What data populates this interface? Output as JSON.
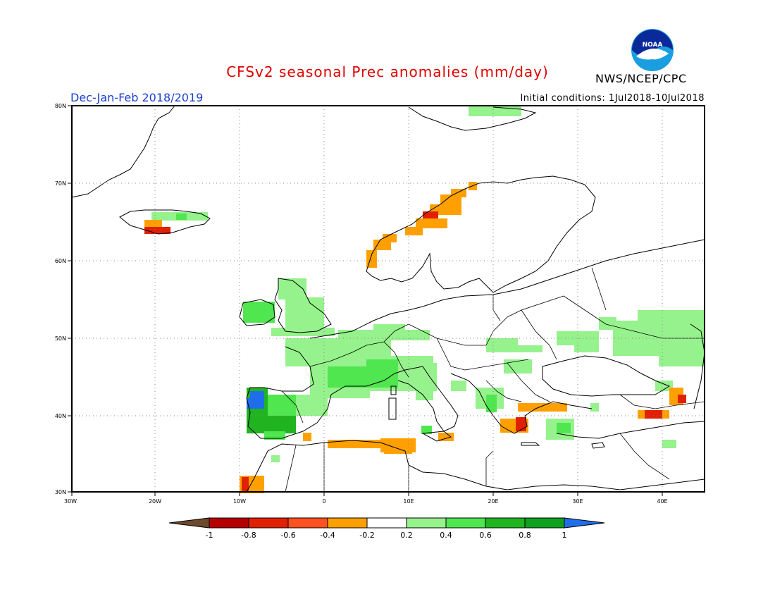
{
  "title": "CFSv2 seasonal Prec anomalies (mm/day)",
  "season": "Dec-Jan-Feb 2018/2019",
  "initial_conditions": "Initial conditions: 1Jul2018-10Jul2018",
  "agency": "NWS/NCEP/CPC",
  "logo_text": "NOAA",
  "map": {
    "lon_range": [
      -30,
      45
    ],
    "lat_range": [
      30,
      80
    ],
    "lon_ticks": [
      "30W",
      "20W",
      "10W",
      "0",
      "10E",
      "20E",
      "30E",
      "40E"
    ],
    "lat_ticks": [
      "30N",
      "40N",
      "50N",
      "60N",
      "70N",
      "80N"
    ]
  },
  "colorbar": {
    "labels": [
      "-1",
      "-0.8",
      "-0.6",
      "-0.4",
      "-0.2",
      "0.2",
      "0.4",
      "0.6",
      "0.8",
      "1"
    ],
    "colors": [
      "#6e4a2c",
      "#b40000",
      "#e02000",
      "#ff5020",
      "#ffa000",
      "#ffffff",
      "#96f28c",
      "#50e650",
      "#20b420",
      "#10a020",
      "#1e6eeb"
    ]
  },
  "anomaly_colors": {
    "light_green": "#96f28c",
    "green": "#50e650",
    "dark_green": "#20b420",
    "blue": "#1e6eeb",
    "orange": "#ffa000",
    "red_orange": "#ff5020",
    "red": "#e02000"
  }
}
